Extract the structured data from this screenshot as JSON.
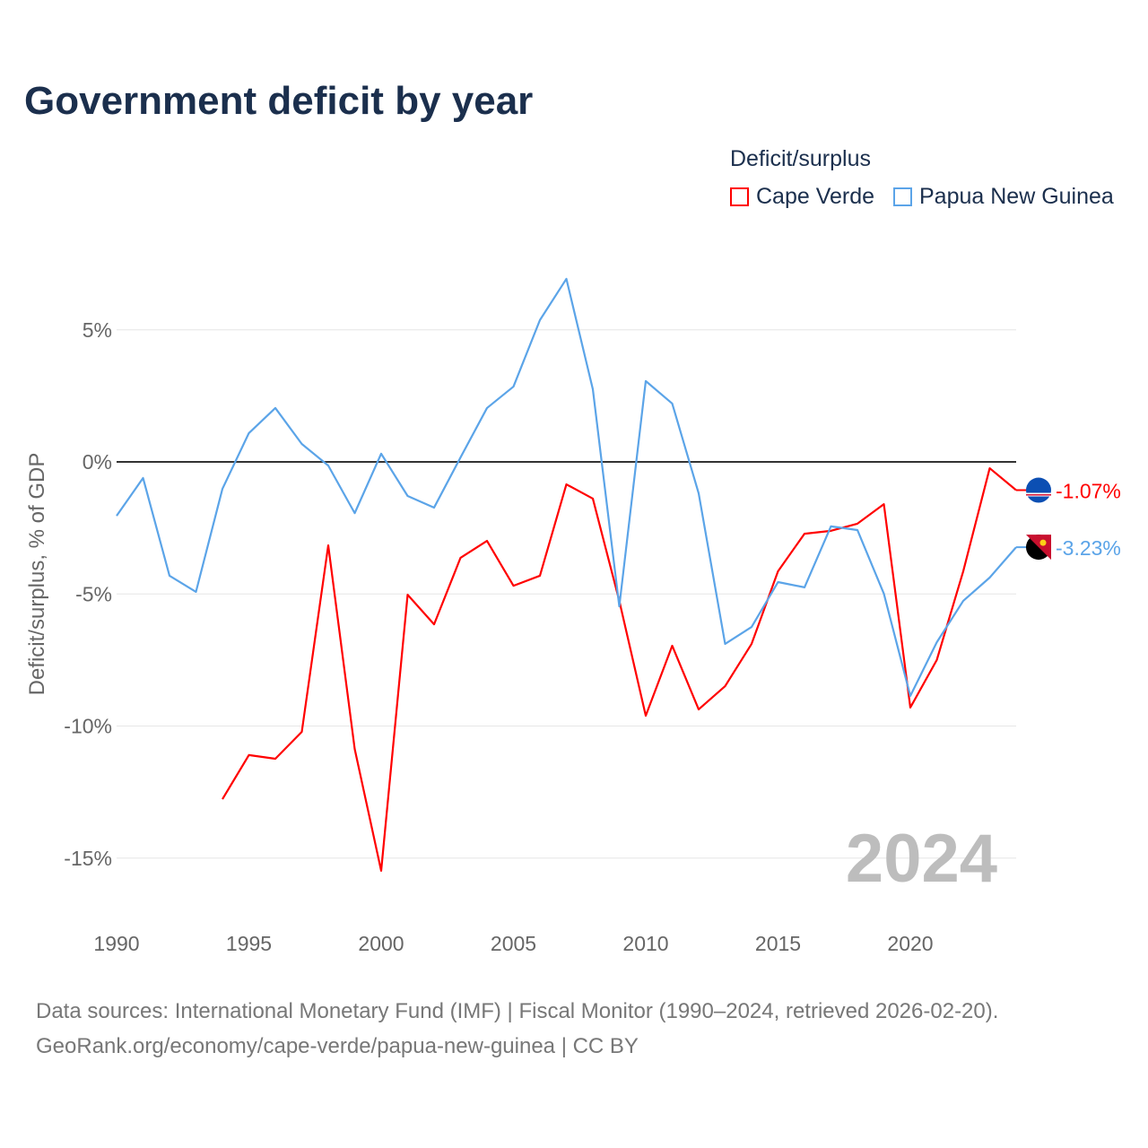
{
  "title": "Government deficit by year",
  "legend": {
    "title": "Deficit/surplus",
    "placement": "top-right"
  },
  "footer": {
    "line1": "Data sources: International Monetary Fund (IMF) | Fiscal Monitor (1990–2024, retrieved 2026-02-20).",
    "line2": "GeoRank.org/economy/cape-verde/papua-new-guinea | CC BY"
  },
  "chart_data": {
    "type": "line",
    "title": "Government deficit by year",
    "xlabel": "",
    "ylabel": "Deficit/surplus, % of GDP",
    "xlim": [
      1990,
      2024
    ],
    "ylim": [
      -17,
      8
    ],
    "xticks": [
      1990,
      1995,
      2000,
      2005,
      2010,
      2015,
      2020
    ],
    "yticks": [
      5,
      0,
      -5,
      -10,
      -15
    ],
    "ytick_labels": [
      "5%",
      "0%",
      "-5%",
      "-10%",
      "-15%"
    ],
    "grid": true,
    "watermark_year": "2024",
    "series": [
      {
        "name": "Cape Verde",
        "color": "#ff0000",
        "end_label": "-1.07%",
        "x": [
          1994,
          1995,
          1996,
          1997,
          1998,
          1999,
          2000,
          2001,
          2002,
          2003,
          2004,
          2005,
          2006,
          2007,
          2008,
          2009,
          2010,
          2011,
          2012,
          2013,
          2014,
          2015,
          2016,
          2017,
          2018,
          2019,
          2020,
          2021,
          2022,
          2023,
          2024
        ],
        "values": [
          -12.77,
          -11.1,
          -11.24,
          -10.22,
          -3.16,
          -10.87,
          -15.48,
          -5.03,
          -6.15,
          -3.63,
          -2.99,
          -4.69,
          -4.31,
          -0.85,
          -1.39,
          -5.26,
          -9.61,
          -6.96,
          -9.37,
          -8.49,
          -6.89,
          -4.14,
          -2.72,
          -2.61,
          -2.34,
          -1.6,
          -9.3,
          -7.5,
          -4.14,
          -0.24,
          -1.07
        ]
      },
      {
        "name": "Papua New Guinea",
        "color": "#5ba4e8",
        "end_label": "-3.23%",
        "x": [
          1990,
          1991,
          1992,
          1993,
          1994,
          1995,
          1996,
          1997,
          1998,
          1999,
          2000,
          2001,
          2002,
          2003,
          2004,
          2005,
          2006,
          2007,
          2008,
          2009,
          2010,
          2011,
          2012,
          2013,
          2014,
          2015,
          2016,
          2017,
          2018,
          2019,
          2020,
          2021,
          2022,
          2023,
          2024
        ],
        "values": [
          -2.04,
          -0.61,
          -4.31,
          -4.92,
          -1.02,
          1.09,
          2.04,
          0.68,
          -0.14,
          -1.94,
          0.31,
          -1.29,
          -1.73,
          0.17,
          2.04,
          2.85,
          5.37,
          6.93,
          2.75,
          -5.47,
          3.06,
          2.21,
          -1.19,
          -6.89,
          -6.25,
          -4.55,
          -4.75,
          -2.44,
          -2.58,
          -4.99,
          -8.86,
          -6.83,
          -5.26,
          -4.38,
          -3.23
        ]
      }
    ]
  }
}
